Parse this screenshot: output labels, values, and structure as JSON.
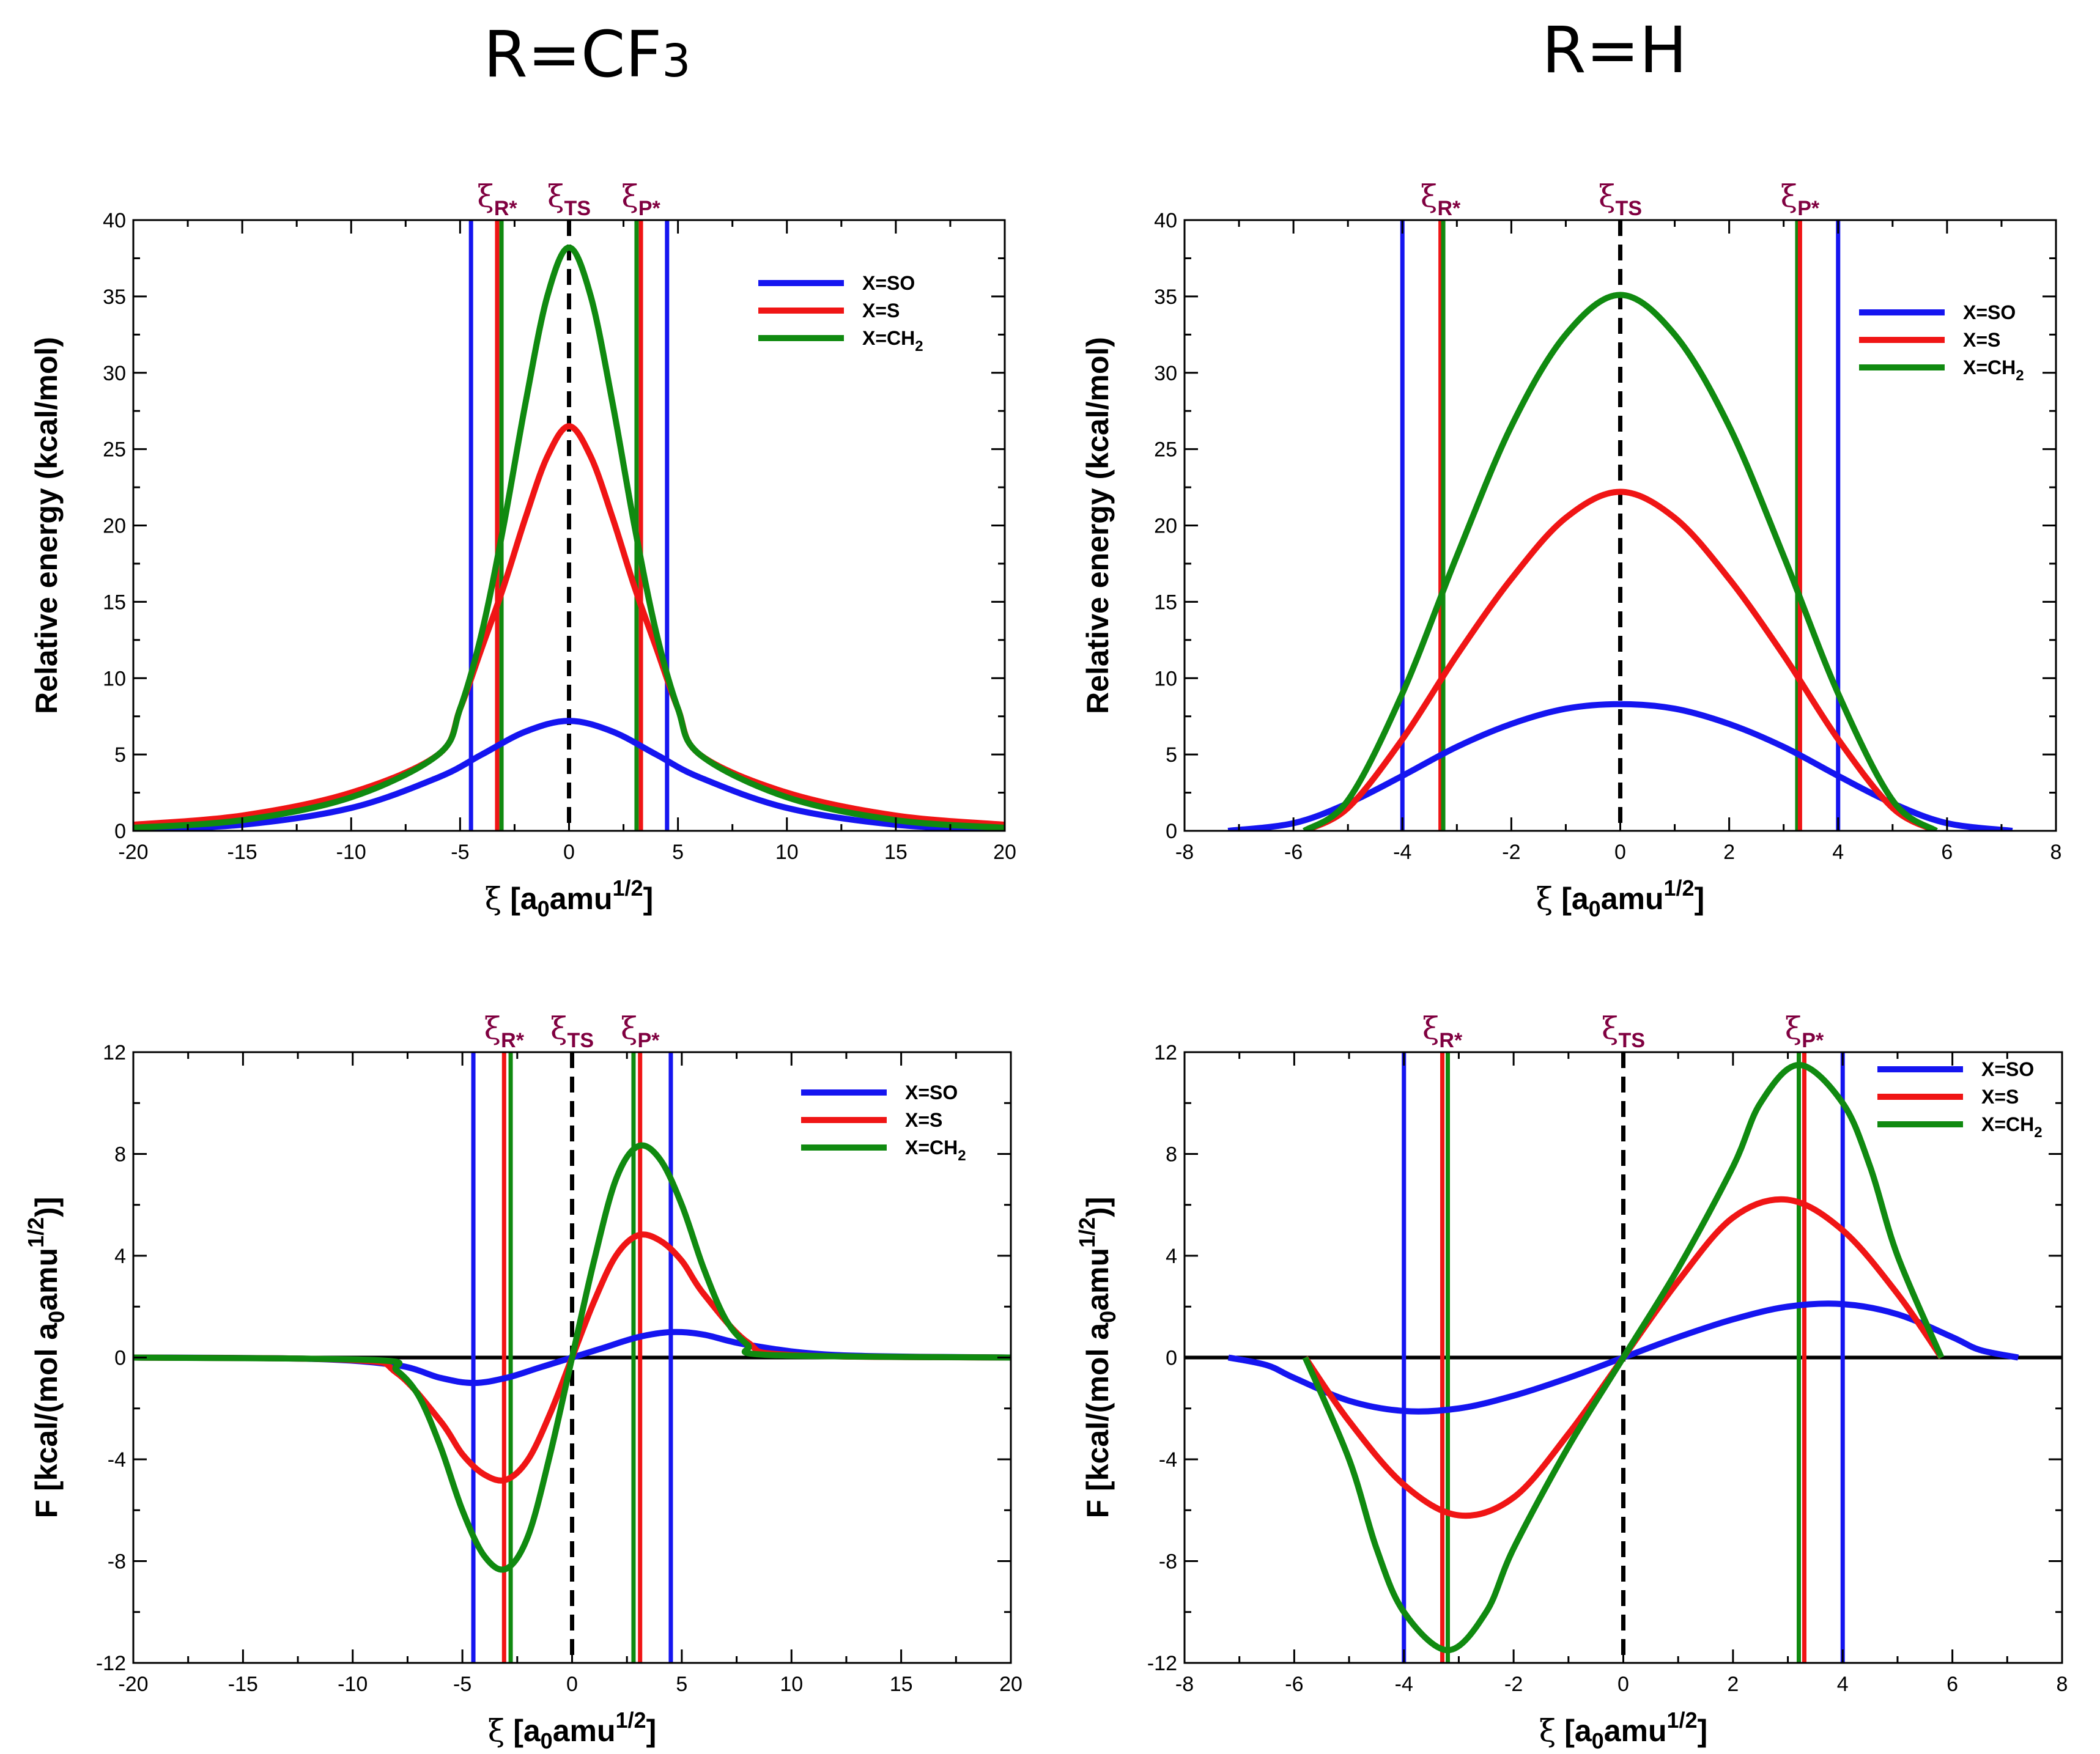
{
  "titles": {
    "left": "R=CF",
    "left_sub": "3",
    "right": "R=H"
  },
  "colors": {
    "SO": "#1515f0",
    "S": "#f01515",
    "CH2": "#108a10",
    "marker": "#800040",
    "ts": "#000000"
  },
  "markers": {
    "xi": "ξ",
    "R": "R*",
    "TS": "TS",
    "P": "P*"
  },
  "legend": {
    "SO": "X=SO",
    "S": "X=S",
    "CH2_main": "X=CH",
    "CH2_sub": "2"
  },
  "chart_data": [
    {
      "id": "energy-cf3",
      "type": "line",
      "ylabel": "Relative energy (kcal/mol)",
      "xlabel": "ξ [a0amu1/2]",
      "xlim": [
        -20,
        20
      ],
      "ylim": [
        0,
        40
      ],
      "xticks": [
        -20,
        -15,
        -10,
        -5,
        0,
        5,
        10,
        15,
        20
      ],
      "yticks": [
        0,
        5,
        10,
        15,
        20,
        25,
        30,
        35,
        40
      ],
      "vlines": [
        -4.5,
        -3.3,
        -3.1,
        3.1,
        3.3,
        4.5
      ],
      "series": [
        {
          "name": "X=SO",
          "x": [
            -20,
            -15,
            -10,
            -6,
            -4,
            -2,
            0,
            2,
            4,
            6,
            10,
            15,
            20
          ],
          "y": [
            0.1,
            0.4,
            1.5,
            3.5,
            5.0,
            6.5,
            7.2,
            6.5,
            5.0,
            3.5,
            1.5,
            0.4,
            0.1
          ]
        },
        {
          "name": "X=S",
          "x": [
            -20,
            -15,
            -10,
            -6,
            -5,
            -4,
            -3,
            -2,
            -1,
            0,
            1,
            2,
            3,
            4,
            5,
            6,
            10,
            15,
            20
          ],
          "y": [
            0.4,
            1.0,
            2.5,
            5.0,
            8.0,
            12.0,
            16.0,
            20.5,
            24.5,
            26.5,
            24.5,
            20.5,
            16.0,
            12.0,
            8.0,
            5.0,
            2.5,
            1.0,
            0.4
          ]
        },
        {
          "name": "X=CH2",
          "x": [
            -20,
            -15,
            -10,
            -6,
            -5,
            -4,
            -3,
            -2,
            -1,
            0,
            1,
            2,
            3,
            4,
            5,
            6,
            10,
            15,
            20
          ],
          "y": [
            0.2,
            0.7,
            2.2,
            5.0,
            8.0,
            13.0,
            20.0,
            28.0,
            35.0,
            38.2,
            35.0,
            28.0,
            20.0,
            13.0,
            8.0,
            5.0,
            2.2,
            0.7,
            0.2
          ]
        }
      ]
    },
    {
      "id": "energy-h",
      "type": "line",
      "ylabel": "Relative energy (kcal/mol)",
      "xlabel": "ξ [a0amu1/2]",
      "xlim": [
        -8,
        8
      ],
      "ylim": [
        0,
        40
      ],
      "xticks": [
        -8,
        -6,
        -4,
        -2,
        0,
        2,
        4,
        6,
        8
      ],
      "yticks": [
        0,
        5,
        10,
        15,
        20,
        25,
        30,
        35,
        40
      ],
      "vlines": [
        -4.0,
        -3.3,
        -3.25,
        3.25,
        3.3,
        4.0
      ],
      "series": [
        {
          "name": "X=SO",
          "x": [
            -7.2,
            -6,
            -5,
            -4,
            -3,
            -2,
            -1,
            0,
            1,
            2,
            3,
            4,
            5,
            6,
            7.2
          ],
          "y": [
            0,
            0.5,
            1.8,
            3.6,
            5.5,
            7.0,
            8.0,
            8.3,
            8.0,
            7.0,
            5.5,
            3.6,
            1.8,
            0.5,
            0
          ]
        },
        {
          "name": "X=S",
          "x": [
            -5.8,
            -5,
            -4,
            -3,
            -2,
            -1,
            0,
            1,
            2,
            3,
            4,
            5,
            5.8
          ],
          "y": [
            0,
            1.5,
            6.0,
            11.5,
            16.5,
            20.5,
            22.2,
            20.5,
            16.5,
            11.5,
            6.0,
            1.5,
            0
          ]
        },
        {
          "name": "X=CH2",
          "x": [
            -5.8,
            -5,
            -4,
            -3,
            -2,
            -1,
            0,
            1,
            2,
            3,
            4,
            5,
            5.8
          ],
          "y": [
            0,
            2.0,
            9.0,
            18.0,
            26.5,
            32.5,
            35.1,
            32.5,
            26.5,
            18.0,
            9.0,
            2.0,
            0
          ]
        }
      ]
    },
    {
      "id": "force-cf3",
      "type": "line",
      "ylabel": "F [kcal/(mol a0amu1/2)]",
      "xlabel": "ξ [a0amu1/2]",
      "xlim": [
        -20,
        20
      ],
      "ylim": [
        -12,
        12
      ],
      "xticks": [
        -20,
        -15,
        -10,
        -5,
        0,
        5,
        10,
        15,
        20
      ],
      "yticks": [
        -12,
        -8,
        -4,
        0,
        4,
        8,
        12
      ],
      "vlines": [
        -4.5,
        -3.1,
        -2.8,
        2.8,
        3.1,
        4.5
      ],
      "series": [
        {
          "name": "X=SO",
          "x": [
            -20,
            -12,
            -8,
            -6,
            -4.5,
            -3,
            -1.5,
            0,
            1.5,
            3,
            4.5,
            6,
            8,
            12,
            20
          ],
          "y": [
            0,
            -0.05,
            -0.3,
            -0.8,
            -1.0,
            -0.8,
            -0.4,
            0,
            0.4,
            0.8,
            1.0,
            0.9,
            0.5,
            0.1,
            0
          ]
        },
        {
          "name": "X=S",
          "x": [
            -20,
            -10,
            -8,
            -6,
            -5,
            -4,
            -3,
            -2,
            -1,
            0,
            1,
            2,
            3,
            4,
            5,
            6,
            8,
            10,
            20
          ],
          "y": [
            0,
            -0.1,
            -0.6,
            -2.5,
            -3.8,
            -4.6,
            -4.8,
            -4.0,
            -2.2,
            0,
            2.2,
            4.0,
            4.8,
            4.6,
            3.8,
            2.5,
            0.6,
            0.1,
            0
          ]
        },
        {
          "name": "X=CH2",
          "x": [
            -20,
            -9,
            -8,
            -7,
            -6,
            -5,
            -4,
            -3,
            -2,
            -1,
            0,
            1,
            2,
            3,
            4,
            5,
            6,
            7,
            8,
            9,
            20
          ],
          "y": [
            0,
            -0.1,
            -0.5,
            -1.5,
            -3.5,
            -6.0,
            -7.8,
            -8.3,
            -7.0,
            -3.8,
            0,
            3.8,
            7.0,
            8.3,
            7.8,
            6.0,
            3.5,
            1.5,
            0.5,
            0.1,
            0
          ]
        }
      ]
    },
    {
      "id": "force-h",
      "type": "line",
      "ylabel": "F [kcal/(mol a0amu1/2)]",
      "xlabel": "ξ [a0amu1/2]",
      "xlim": [
        -8,
        8
      ],
      "ylim": [
        -12,
        12
      ],
      "xticks": [
        -8,
        -6,
        -4,
        -2,
        0,
        2,
        4,
        6,
        8
      ],
      "yticks": [
        -12,
        -8,
        -4,
        0,
        4,
        8,
        12
      ],
      "vlines": [
        -4.0,
        -3.3,
        -3.2,
        3.2,
        3.3,
        4.0
      ],
      "series": [
        {
          "name": "X=SO",
          "x": [
            -7.2,
            -6.5,
            -6,
            -5,
            -4,
            -3,
            -2,
            -1,
            0,
            1,
            2,
            3,
            4,
            5,
            6,
            6.5,
            7.2
          ],
          "y": [
            0,
            -0.3,
            -0.8,
            -1.7,
            -2.1,
            -2.0,
            -1.5,
            -0.8,
            0,
            0.8,
            1.5,
            2.0,
            2.1,
            1.7,
            0.8,
            0.3,
            0
          ]
        },
        {
          "name": "X=S",
          "x": [
            -5.8,
            -5,
            -4,
            -3,
            -2,
            -1,
            0,
            1,
            2,
            3,
            4,
            5,
            5.8
          ],
          "y": [
            0,
            -2.5,
            -5.0,
            -6.2,
            -5.5,
            -3.0,
            0,
            3.0,
            5.5,
            6.2,
            5.0,
            2.5,
            0
          ]
        },
        {
          "name": "X=CH2",
          "x": [
            -5.8,
            -5,
            -4.5,
            -4,
            -3.2,
            -2.5,
            -2,
            -1,
            0,
            1,
            2,
            2.5,
            3.2,
            4,
            4.5,
            5,
            5.8
          ],
          "y": [
            0,
            -4.0,
            -7.5,
            -10.0,
            -11.5,
            -10.0,
            -7.5,
            -3.5,
            0,
            3.5,
            7.5,
            10.0,
            11.5,
            10.0,
            7.5,
            4.0,
            0
          ]
        }
      ]
    }
  ]
}
